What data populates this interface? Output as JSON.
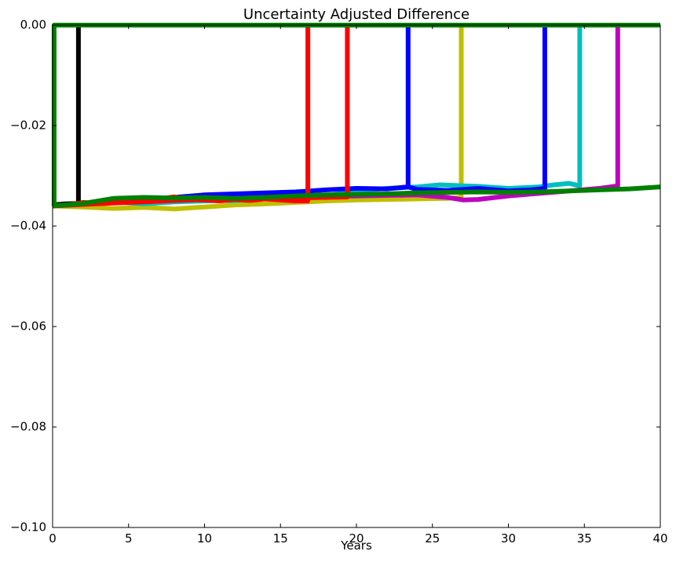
{
  "chart_data": {
    "type": "line",
    "title": "Uncertainty Adjusted Difference",
    "xlabel": "Years",
    "ylabel": "",
    "xlim": [
      0,
      40
    ],
    "ylim": [
      -0.1,
      0.0
    ],
    "xticks": [
      0,
      5,
      10,
      15,
      20,
      25,
      30,
      35,
      40
    ],
    "xtick_labels": [
      "0",
      "5",
      "10",
      "15",
      "20",
      "25",
      "30",
      "35",
      "40"
    ],
    "yticks": [
      0.0,
      -0.02,
      -0.04,
      -0.06,
      -0.08,
      -0.1
    ],
    "ytick_labels": [
      "0.00",
      "−0.02",
      "−0.04",
      "−0.06",
      "−0.08",
      "−0.10"
    ],
    "grid": false,
    "series": [
      {
        "color": "#bfbf00",
        "x": [
          0,
          2,
          4,
          6,
          8,
          10,
          12,
          14,
          16,
          18,
          20,
          22,
          24,
          26,
          26.9,
          26.9,
          40
        ],
        "y": [
          -0.036,
          -0.0362,
          -0.0365,
          -0.0363,
          -0.0366,
          -0.0362,
          -0.0358,
          -0.0356,
          -0.0353,
          -0.035,
          -0.0348,
          -0.0347,
          -0.0346,
          -0.0345,
          -0.0343,
          0.0,
          0.0
        ]
      },
      {
        "color": "#00bfbf",
        "x": [
          0,
          2,
          4,
          6,
          8,
          10,
          12,
          14,
          16,
          18,
          20,
          22,
          24,
          25.5,
          27,
          28,
          30,
          32,
          33,
          34,
          34.7,
          34.7,
          40
        ],
        "y": [
          -0.0358,
          -0.0355,
          -0.0352,
          -0.0356,
          -0.0352,
          -0.035,
          -0.0349,
          -0.0345,
          -0.0343,
          -0.034,
          -0.033,
          -0.0325,
          -0.0322,
          -0.0318,
          -0.032,
          -0.0321,
          -0.0325,
          -0.0322,
          -0.0318,
          -0.0315,
          -0.032,
          0.0,
          0.0
        ]
      },
      {
        "color": "#bf00bf",
        "x": [
          0,
          4,
          8,
          12,
          16,
          20,
          24,
          26,
          27,
          28,
          30,
          32,
          34,
          36,
          37.2,
          37.2,
          40
        ],
        "y": [
          -0.0358,
          -0.0352,
          -0.0349,
          -0.0345,
          -0.0342,
          -0.034,
          -0.0338,
          -0.0343,
          -0.0348,
          -0.0347,
          -0.034,
          -0.0335,
          -0.033,
          -0.0325,
          -0.032,
          0.0,
          0.0
        ]
      },
      {
        "color": "#0000ff",
        "x": [
          0,
          2,
          4,
          6,
          8,
          10,
          12,
          14,
          16,
          18,
          20,
          22,
          23.4,
          23.4,
          32.4,
          32.4,
          40
        ],
        "y": [
          -0.0358,
          -0.0355,
          -0.035,
          -0.0347,
          -0.0343,
          -0.0338,
          -0.0336,
          -0.0334,
          -0.0332,
          -0.0328,
          -0.0325,
          -0.0326,
          -0.0322,
          0.0,
          0.0,
          0.0,
          0.0
        ]
      },
      {
        "color": "#0000ff",
        "x": [
          23.4,
          24,
          26,
          28,
          30,
          31.5,
          32.4,
          32.4
        ],
        "y": [
          -0.0322,
          -0.0327,
          -0.0329,
          -0.0325,
          -0.033,
          -0.0328,
          -0.0325,
          0.0
        ]
      },
      {
        "color": "#000000",
        "x": [
          0,
          0.8,
          1.7,
          1.7,
          40
        ],
        "y": [
          -0.0358,
          -0.0356,
          -0.0355,
          0.0,
          0.0
        ]
      },
      {
        "color": "#ff0000",
        "x": [
          0,
          1,
          2,
          3,
          4,
          5,
          6,
          7,
          8,
          9,
          10,
          11,
          12,
          13,
          14,
          15,
          16,
          16.8,
          16.8,
          40
        ],
        "y": [
          -0.036,
          -0.0358,
          -0.0353,
          -0.0355,
          -0.0348,
          -0.0345,
          -0.0349,
          -0.0346,
          -0.0342,
          -0.0347,
          -0.0348,
          -0.035,
          -0.0347,
          -0.0349,
          -0.0346,
          -0.0348,
          -0.035,
          -0.035,
          0.0,
          0.0
        ]
      },
      {
        "color": "#ff0000",
        "x": [
          0,
          2,
          4,
          6,
          8,
          10,
          12,
          14,
          16,
          18,
          19.4,
          19.4,
          40
        ],
        "y": [
          -0.036,
          -0.0357,
          -0.0354,
          -0.0352,
          -0.0349,
          -0.0347,
          -0.0346,
          -0.0346,
          -0.0344,
          -0.0343,
          -0.0342,
          0.0,
          0.0
        ]
      },
      {
        "color": "#008000",
        "x": [
          0,
          0.1,
          0.1,
          40
        ],
        "y": [
          -0.036,
          -0.036,
          0.0,
          0.0
        ]
      },
      {
        "color": "#008000",
        "x": [
          0,
          2,
          4,
          6,
          8,
          10,
          12,
          14,
          16,
          18,
          20,
          22,
          24,
          26,
          28,
          30,
          32,
          34,
          36,
          38,
          40
        ],
        "y": [
          -0.036,
          -0.0355,
          -0.0345,
          -0.0343,
          -0.0344,
          -0.0343,
          -0.0345,
          -0.0343,
          -0.034,
          -0.0338,
          -0.0337,
          -0.0336,
          -0.0334,
          -0.0333,
          -0.0332,
          -0.0333,
          -0.0332,
          -0.033,
          -0.0328,
          -0.0326,
          -0.0322
        ]
      }
    ]
  }
}
